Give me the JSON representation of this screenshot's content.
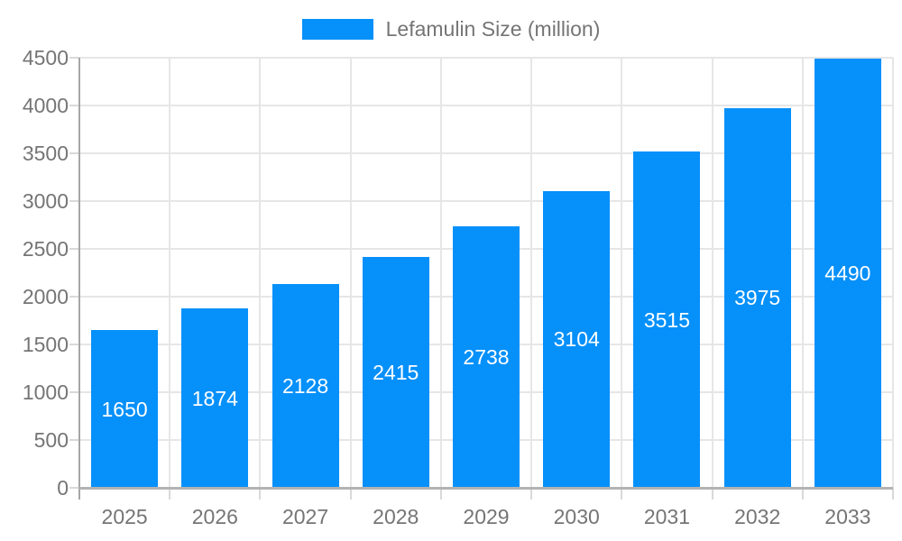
{
  "chart_data": {
    "type": "bar",
    "title": "",
    "legend": {
      "label": "Lefamulin Size (million)",
      "position": "top"
    },
    "categories": [
      "2025",
      "2026",
      "2027",
      "2028",
      "2029",
      "2030",
      "2031",
      "2032",
      "2033"
    ],
    "series": [
      {
        "name": "Lefamulin Size (million)",
        "values": [
          1650,
          1874,
          2128,
          2415,
          2738,
          3104,
          3515,
          3975,
          4490
        ]
      }
    ],
    "xlabel": "",
    "ylabel": "",
    "ylim": [
      0,
      4500
    ],
    "yticks": [
      0,
      500,
      1000,
      1500,
      2000,
      2500,
      3000,
      3500,
      4000,
      4500
    ],
    "grid": true,
    "value_label_position": "inside-center"
  },
  "palette": {
    "bar": "#0690fa",
    "grid": "#e6e6e6",
    "tick": "#d9d9d9",
    "axis_line": "#a6a6a6",
    "baseline": "#b3b3b3",
    "axis_label": "#757575",
    "legend_label": "#757575",
    "value_label": "#ffffff",
    "background": "#ffffff"
  }
}
